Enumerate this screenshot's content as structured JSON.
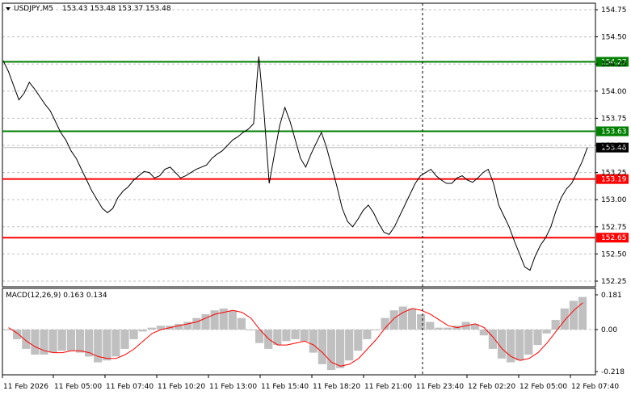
{
  "header": {
    "symbol": "USDJPY,M5",
    "ohlc": "153.43 153.48 153.37 153.48"
  },
  "macd_header": {
    "label": "MACD(12,26,9) 0.163 0.134"
  },
  "colors": {
    "background": "#ffffff",
    "price_line": "#000000",
    "resistance": "#008000",
    "support": "#ff0000",
    "histogram": "#c0c0c0",
    "signal": "#ff0000",
    "grid": "#c0c0c0",
    "current_price_bg": "#000000"
  },
  "chart_data": [
    {
      "type": "line",
      "title": "USDJPY,M5 153.43 153.48 153.37 153.48",
      "ylim": [
        152.2,
        154.8
      ],
      "y_ticks": [
        "154.75",
        "154.50",
        "154.25",
        "154.00",
        "153.75",
        "153.50",
        "153.25",
        "153.00",
        "152.75",
        "152.50",
        "152.25"
      ],
      "x_ticks": [
        "11 Feb 2026",
        "11 Feb 05:00",
        "11 Feb 07:40",
        "11 Feb 10:20",
        "11 Feb 13:00",
        "11 Feb 15:40",
        "11 Feb 18:20",
        "11 Feb 21:00",
        "11 Feb 23:40",
        "12 Feb 02:20",
        "12 Feb 05:00",
        "12 Feb 07:40"
      ],
      "current_price": "153.48",
      "levels": [
        {
          "label": "154.27",
          "value": 154.27,
          "color": "#008000"
        },
        {
          "label": "153.63",
          "value": 153.63,
          "color": "#008000"
        },
        {
          "label": "153.19",
          "value": 153.19,
          "color": "#ff0000"
        },
        {
          "label": "152.65",
          "value": 152.65,
          "color": "#ff0000"
        }
      ],
      "series": [
        {
          "values": [
            154.28,
            154.18,
            154.05,
            153.92,
            153.98,
            154.08,
            154.02,
            153.95,
            153.88,
            153.82,
            153.72,
            153.62,
            153.55,
            153.45,
            153.38,
            153.28,
            153.18,
            153.08,
            153.0,
            152.92,
            152.88,
            152.92,
            153.02,
            153.08,
            153.12,
            153.18,
            153.22,
            153.26,
            153.25,
            153.2,
            153.22,
            153.28,
            153.3,
            153.25,
            153.2,
            153.22,
            153.25,
            153.28,
            153.3,
            153.32,
            153.38,
            153.42,
            153.45,
            153.5,
            153.55,
            153.58,
            153.62,
            153.65,
            153.7,
            154.32,
            153.8,
            153.15,
            153.42,
            153.68,
            153.85,
            153.72,
            153.55,
            153.38,
            153.3,
            153.42,
            153.52,
            153.62,
            153.48,
            153.3,
            153.12,
            152.92,
            152.8,
            152.75,
            152.82,
            152.9,
            152.95,
            152.88,
            152.78,
            152.7,
            152.68,
            152.75,
            152.85,
            152.95,
            153.05,
            153.15,
            153.22,
            153.25,
            153.28,
            153.22,
            153.18,
            153.15,
            153.15,
            153.2,
            153.22,
            153.18,
            153.16,
            153.2,
            153.25,
            153.28,
            153.15,
            152.95,
            152.85,
            152.75,
            152.62,
            152.5,
            152.38,
            152.35,
            152.48,
            152.58,
            152.65,
            152.75,
            152.9,
            153.02,
            153.1,
            153.15,
            153.25,
            153.35,
            153.48
          ]
        }
      ]
    },
    {
      "type": "bar",
      "title": "MACD(12,26,9) 0.163 0.134",
      "ylim": [
        -0.218,
        0.181
      ],
      "y_ticks": [
        "0.181",
        "0.00",
        "-0.218"
      ],
      "series": [
        {
          "name": "MACD",
          "values": [
            0.0,
            -0.05,
            -0.1,
            -0.13,
            -0.13,
            -0.12,
            -0.11,
            -0.11,
            -0.12,
            -0.14,
            -0.17,
            -0.16,
            -0.14,
            -0.1,
            -0.05,
            -0.01,
            0.01,
            0.02,
            0.02,
            0.03,
            0.04,
            0.06,
            0.08,
            0.1,
            0.11,
            0.1,
            0.06,
            0.0,
            -0.07,
            -0.1,
            -0.08,
            -0.06,
            -0.05,
            -0.06,
            -0.12,
            -0.18,
            -0.21,
            -0.2,
            -0.16,
            -0.11,
            -0.05,
            0.0,
            0.06,
            0.1,
            0.12,
            0.11,
            0.08,
            0.04,
            0.01,
            0.01,
            0.02,
            0.04,
            0.03,
            -0.03,
            -0.1,
            -0.15,
            -0.17,
            -0.16,
            -0.13,
            -0.08,
            -0.02,
            0.05,
            0.11,
            0.15,
            0.17
          ]
        },
        {
          "name": "Signal",
          "values": [
            0.01,
            -0.02,
            -0.06,
            -0.09,
            -0.11,
            -0.12,
            -0.12,
            -0.11,
            -0.11,
            -0.12,
            -0.14,
            -0.15,
            -0.15,
            -0.13,
            -0.1,
            -0.06,
            -0.02,
            0.0,
            0.01,
            0.02,
            0.03,
            0.04,
            0.06,
            0.08,
            0.09,
            0.1,
            0.09,
            0.06,
            0.0,
            -0.05,
            -0.08,
            -0.08,
            -0.07,
            -0.06,
            -0.08,
            -0.12,
            -0.17,
            -0.19,
            -0.18,
            -0.15,
            -0.1,
            -0.05,
            0.01,
            0.06,
            0.09,
            0.11,
            0.1,
            0.08,
            0.05,
            0.02,
            0.01,
            0.02,
            0.03,
            0.01,
            -0.04,
            -0.1,
            -0.14,
            -0.16,
            -0.15,
            -0.12,
            -0.07,
            -0.01,
            0.05,
            0.1,
            0.14
          ]
        }
      ]
    }
  ]
}
